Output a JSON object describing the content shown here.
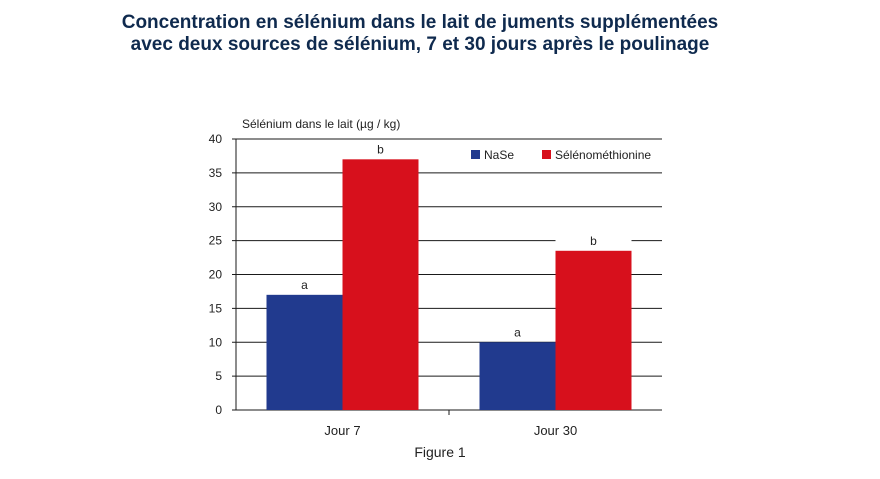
{
  "title_line1": "Concentration en sélénium dans le lait de juments supplémentées",
  "title_line2": "avec deux sources de sélénium, 7 et 30 jours après le poulinage",
  "caption": "Figure 1",
  "chart_data": {
    "type": "bar",
    "ylabel": "Sélénium dans le lait (µg / kg)",
    "xlabel": "",
    "ylim": [
      0,
      40
    ],
    "yticks": [
      0,
      5,
      10,
      15,
      20,
      25,
      30,
      35,
      40
    ],
    "grid": true,
    "legend_position": "top-right",
    "categories": [
      "Jour 7",
      "Jour 30"
    ],
    "series": [
      {
        "name": "NaSe",
        "color": "#213a8e",
        "values": [
          17,
          10
        ],
        "labels": [
          "a",
          "a"
        ]
      },
      {
        "name": "Sélénométhionine",
        "color": "#d7101c",
        "values": [
          37,
          23.5
        ],
        "labels": [
          "b",
          "b"
        ]
      }
    ]
  }
}
